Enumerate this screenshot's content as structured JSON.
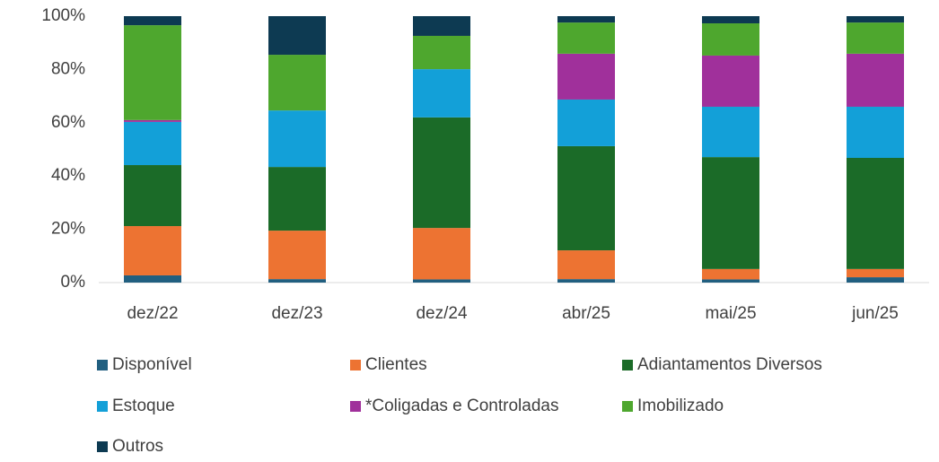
{
  "chart_data": {
    "type": "stacked_bar",
    "categories": [
      "dez/22",
      "dez/23",
      "dez/24",
      "abr/25",
      "mai/25",
      "jun/25"
    ],
    "series": [
      {
        "name": "Disponível",
        "color": "#215f80",
        "values": [
          2.7,
          1.3,
          1.2,
          1.3,
          1.2,
          2.0
        ]
      },
      {
        "name": "Clientes",
        "color": "#ed7332",
        "values": [
          18.5,
          18.2,
          19.3,
          10.8,
          3.9,
          3.1
        ]
      },
      {
        "name": "Adiantamentos Diversos",
        "color": "#1b6b28",
        "values": [
          22.9,
          23.9,
          41.5,
          39.1,
          42.0,
          41.7
        ]
      },
      {
        "name": "Estoque",
        "color": "#13a0d8",
        "values": [
          16.2,
          21.2,
          18.1,
          17.5,
          18.9,
          19.2
        ]
      },
      {
        "name": "*Coligadas e Controladas",
        "color": "#a0309b",
        "values": [
          0.7,
          0,
          0,
          17.2,
          19.2,
          19.9
        ]
      },
      {
        "name": "Imobilizado",
        "color": "#4ea72e",
        "values": [
          35.6,
          20.9,
          12.5,
          11.7,
          12.1,
          11.7
        ]
      },
      {
        "name": "Outros",
        "color": "#0d3a52",
        "values": [
          3.4,
          14.5,
          7.4,
          2.4,
          2.7,
          2.4
        ]
      }
    ],
    "ylim": [
      0,
      100
    ],
    "yticks": [
      {
        "value": 0,
        "label": "0%"
      },
      {
        "value": 20,
        "label": "20%"
      },
      {
        "value": 40,
        "label": "40%"
      },
      {
        "value": 60,
        "label": "60%"
      },
      {
        "value": 80,
        "label": "80%"
      },
      {
        "value": 100,
        "label": "100%"
      }
    ],
    "grid": false,
    "legend": "bottom"
  }
}
